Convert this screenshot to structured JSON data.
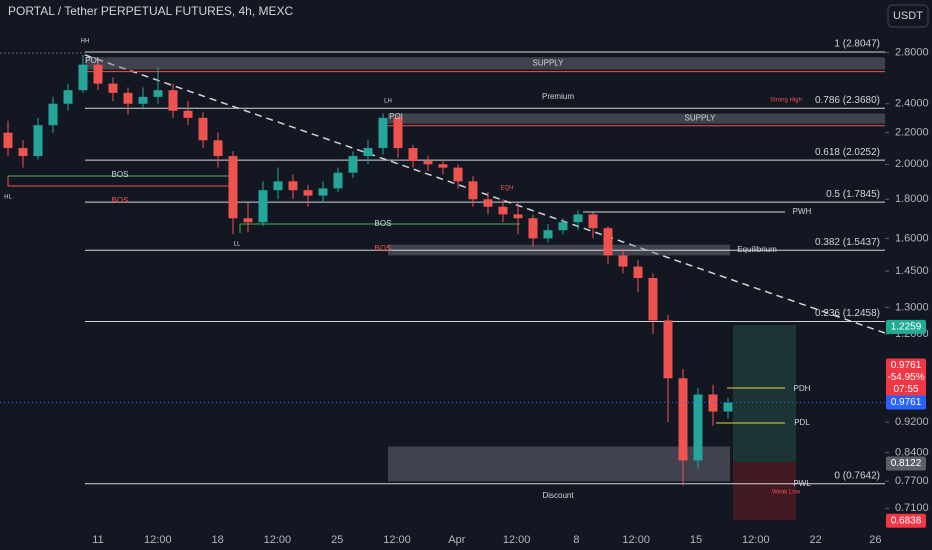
{
  "title": "PORTAL / Tether PERPETUAL FUTURES, 4h, MEXC",
  "currency": "USDT",
  "chart_data": {
    "type": "candlestick",
    "colors": {
      "up": "#26a69a",
      "down": "#ef5350"
    },
    "log_scale": true,
    "ylim": [
      0.655,
      3.28
    ],
    "yticks": [
      {
        "value": 2.8,
        "label": "2.8000"
      },
      {
        "value": 2.4,
        "label": "2.4000"
      },
      {
        "value": 2.2,
        "label": "2.2000"
      },
      {
        "value": 2.0,
        "label": "2.0000"
      },
      {
        "value": 1.8,
        "label": "1.8000"
      },
      {
        "value": 1.6,
        "label": "1.6000"
      },
      {
        "value": 1.45,
        "label": "1.4500"
      },
      {
        "value": 1.3,
        "label": "1.3000"
      },
      {
        "value": 1.2,
        "label": "1.2000"
      },
      {
        "value": 0.92,
        "label": "0.9200"
      },
      {
        "value": 0.84,
        "label": "0.8400"
      },
      {
        "value": 0.77,
        "label": "0.7700"
      },
      {
        "value": 0.71,
        "label": "0.7100"
      }
    ],
    "xtick_labels": [
      "11",
      "12:00",
      "18",
      "12:00",
      "25",
      "12:00",
      "Apr",
      "12:00",
      "8",
      "12:00",
      "15",
      "12:00",
      "22",
      "26"
    ],
    "candles": [
      [
        2.2,
        2.28,
        2.05,
        2.1
      ],
      [
        2.1,
        2.15,
        1.98,
        2.05
      ],
      [
        2.05,
        2.3,
        2.03,
        2.25
      ],
      [
        2.25,
        2.45,
        2.2,
        2.4
      ],
      [
        2.4,
        2.55,
        2.35,
        2.5
      ],
      [
        2.5,
        2.78,
        2.48,
        2.7
      ],
      [
        2.7,
        2.74,
        2.5,
        2.55
      ],
      [
        2.55,
        2.6,
        2.42,
        2.48
      ],
      [
        2.48,
        2.52,
        2.32,
        2.4
      ],
      [
        2.4,
        2.52,
        2.36,
        2.45
      ],
      [
        2.45,
        2.68,
        2.4,
        2.5
      ],
      [
        2.5,
        2.55,
        2.3,
        2.35
      ],
      [
        2.35,
        2.42,
        2.25,
        2.3
      ],
      [
        2.3,
        2.34,
        2.1,
        2.15
      ],
      [
        2.15,
        2.2,
        1.98,
        2.05
      ],
      [
        2.05,
        2.08,
        1.62,
        1.7
      ],
      [
        1.7,
        1.78,
        1.63,
        1.68
      ],
      [
        1.68,
        1.9,
        1.66,
        1.85
      ],
      [
        1.85,
        1.98,
        1.8,
        1.9
      ],
      [
        1.9,
        1.94,
        1.8,
        1.85
      ],
      [
        1.85,
        1.88,
        1.76,
        1.82
      ],
      [
        1.82,
        1.9,
        1.78,
        1.86
      ],
      [
        1.86,
        1.98,
        1.84,
        1.95
      ],
      [
        1.95,
        2.08,
        1.92,
        2.05
      ],
      [
        2.05,
        2.15,
        2.0,
        2.1
      ],
      [
        2.1,
        2.33,
        2.06,
        2.3
      ],
      [
        2.3,
        2.32,
        2.04,
        2.1
      ],
      [
        2.1,
        2.12,
        1.98,
        2.02
      ],
      [
        2.02,
        2.05,
        1.96,
        2.0
      ],
      [
        2.0,
        2.03,
        1.94,
        1.98
      ],
      [
        1.98,
        2.0,
        1.86,
        1.9
      ],
      [
        1.9,
        1.93,
        1.76,
        1.8
      ],
      [
        1.8,
        1.84,
        1.72,
        1.76
      ],
      [
        1.76,
        1.8,
        1.68,
        1.72
      ],
      [
        1.72,
        1.78,
        1.62,
        1.7
      ],
      [
        1.7,
        1.72,
        1.56,
        1.6
      ],
      [
        1.6,
        1.67,
        1.58,
        1.64
      ],
      [
        1.64,
        1.7,
        1.62,
        1.68
      ],
      [
        1.68,
        1.74,
        1.64,
        1.72
      ],
      [
        1.72,
        1.73,
        1.6,
        1.65
      ],
      [
        1.65,
        1.66,
        1.48,
        1.52
      ],
      [
        1.52,
        1.55,
        1.44,
        1.47
      ],
      [
        1.47,
        1.5,
        1.36,
        1.42
      ],
      [
        1.42,
        1.44,
        1.2,
        1.25
      ],
      [
        1.25,
        1.27,
        0.92,
        1.05
      ],
      [
        1.05,
        1.08,
        0.76,
        0.82
      ],
      [
        0.82,
        1.02,
        0.8,
        1.0
      ],
      [
        1.0,
        1.03,
        0.91,
        0.95
      ],
      [
        0.95,
        0.99,
        0.93,
        0.9761
      ]
    ],
    "levels": [
      {
        "label": "1 (2.8047)",
        "value": 2.8047
      },
      {
        "label": "0.786 (2.3680)",
        "value": 2.368
      },
      {
        "label": "0.618 (2.0252)",
        "value": 2.0252
      },
      {
        "label": "0.5 (1.7845)",
        "value": 1.7845
      },
      {
        "label": "0.382 (1.5437)",
        "value": 1.5437
      },
      {
        "label": "0.236 (1.2458)",
        "value": 1.2458
      },
      {
        "label": "0 (0.7642)",
        "value": 0.7642
      }
    ],
    "zones": [
      {
        "label": "SUPPLY",
        "top": 2.76,
        "bottom": 2.66
      },
      {
        "label": "SUPPLY",
        "top": 2.33,
        "bottom": 2.26
      },
      {
        "label": "Equilibrium",
        "top": 1.57,
        "bottom": 1.52
      },
      {
        "top": 0.855,
        "bottom": 0.77
      }
    ],
    "annotations": [
      "HH",
      "POI",
      "Premium",
      "LH",
      "POI",
      "Strong High",
      "HL",
      "BOS",
      "BOS",
      "EQH",
      "BOS",
      "LL",
      "BOS",
      "PWH",
      "PDH",
      "PDL",
      "PWL",
      "Weak Low",
      "Discount"
    ],
    "price_tags": [
      {
        "value": 1.2259,
        "color": "#22ab94"
      },
      {
        "value": 0.9761,
        "color": "#f23645"
      },
      {
        "value": 0.9761,
        "color": "#2962ff"
      },
      {
        "value": 0.8122,
        "color": "#5d606b"
      },
      {
        "value": 0.6838,
        "color": "#f23645"
      }
    ],
    "change": "-54.95%",
    "countdown": "07:55"
  }
}
